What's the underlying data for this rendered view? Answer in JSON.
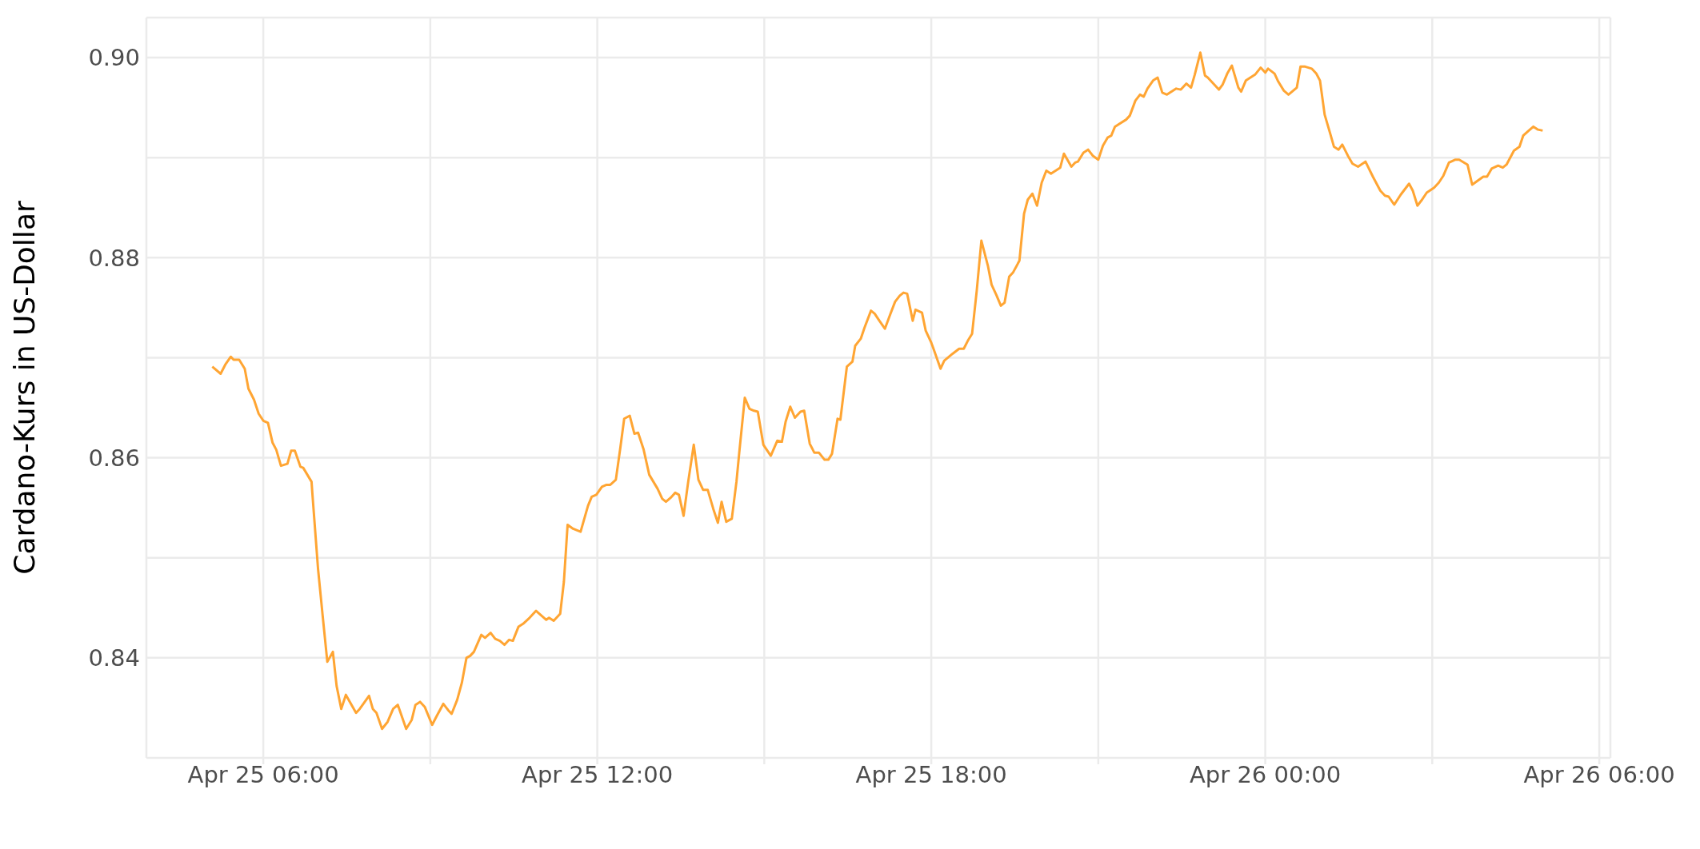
{
  "chart_data": {
    "type": "line",
    "ylabel": "Cardano-Kurs in US-Dollar",
    "xlim": [
      "--04-25T03:54",
      "--04-26T06:12"
    ],
    "xticks": [
      {
        "value": "--04-25T06:00",
        "label": "Apr 25 06:00"
      },
      {
        "value": "--04-25T09:00",
        "label": null
      },
      {
        "value": "--04-25T12:00",
        "label": "Apr 25 12:00"
      },
      {
        "value": "--04-25T15:00",
        "label": null
      },
      {
        "value": "--04-25T18:00",
        "label": "Apr 25 18:00"
      },
      {
        "value": "--04-25T21:00",
        "label": null
      },
      {
        "value": "--04-26T00:00",
        "label": "Apr 26 00:00"
      },
      {
        "value": "--04-26T03:00",
        "label": null
      },
      {
        "value": "--04-26T06:00",
        "label": "Apr 26 06:00"
      }
    ],
    "ylim": [
      0.83,
      0.904
    ],
    "yticks": [
      {
        "value": 0.83,
        "label": null
      },
      0.84,
      {
        "value": 0.85,
        "label": null
      },
      0.86,
      {
        "value": 0.87,
        "label": null
      },
      0.88,
      {
        "value": 0.89,
        "label": null
      },
      {
        "value": 0.9,
        "label": "0.90"
      }
    ],
    "grid": true,
    "legend": false,
    "marker": "none",
    "line_style": "solid",
    "series": [
      {
        "color": "#ffa533",
        "x": [
          "--04-25T05:05",
          "--04-25T05:14",
          "--04-25T05:19",
          "--04-25T05:25",
          "--04-25T05:28",
          "--04-25T05:34",
          "--04-25T05:40",
          "--04-25T05:44",
          "--04-25T05:50",
          "--04-25T05:55",
          "--04-25T06:00",
          "--04-25T06:05",
          "--04-25T06:10",
          "--04-25T06:14",
          "--04-25T06:19",
          "--04-25T06:26",
          "--04-25T06:30",
          "--04-25T06:34",
          "--04-25T06:40",
          "--04-25T06:43",
          "--04-25T06:52",
          "--04-25T06:53",
          "--04-25T06:59",
          "--04-25T07:04",
          "--04-25T07:09",
          "--04-25T07:15",
          "--04-25T07:19",
          "--04-25T07:24",
          "--04-25T07:29",
          "--04-25T07:40",
          "--04-25T07:44",
          "--04-25T07:54",
          "--04-25T07:58",
          "--04-25T08:02",
          "--04-25T08:08",
          "--04-25T08:14",
          "--04-25T08:20",
          "--04-25T08:25",
          "--04-25T08:34",
          "--04-25T08:40",
          "--04-25T08:44",
          "--04-25T08:49",
          "--04-25T08:54",
          "--04-25T09:02",
          "--04-25T09:07",
          "--04-25T09:14",
          "--04-25T09:19",
          "--04-25T09:23",
          "--04-25T09:29",
          "--04-25T09:34",
          "--04-25T09:39",
          "--04-25T09:43",
          "--04-25T09:47",
          "--04-25T09:55",
          "--04-25T09:59",
          "--04-25T10:05",
          "--04-25T10:10",
          "--04-25T10:15",
          "--04-25T10:20",
          "--04-25T10:25",
          "--04-25T10:29",
          "--04-25T10:35",
          "--04-25T10:40",
          "--04-25T10:47",
          "--04-25T10:54",
          "--04-25T11:05",
          "--04-25T11:08",
          "--04-25T11:13",
          "--04-25T11:20",
          "--04-25T11:24",
          "--04-25T11:28",
          "--04-25T11:34",
          "--04-25T11:42",
          "--04-25T11:50",
          "--04-25T11:54",
          "--04-25T11:59",
          "--04-25T12:05",
          "--04-25T12:10",
          "--04-25T12:14",
          "--04-25T12:20",
          "--04-25T12:25",
          "--04-25T12:29",
          "--04-25T12:35",
          "--04-25T12:40",
          "--04-25T12:44",
          "--04-25T12:50",
          "--04-25T12:56",
          "--04-25T13:05",
          "--04-25T13:10",
          "--04-25T13:14",
          "--04-25T13:19",
          "--04-25T13:24",
          "--04-25T13:28",
          "--04-25T13:33",
          "--04-25T13:38",
          "--04-25T13:44",
          "--04-25T13:49",
          "--04-25T13:54",
          "--04-25T13:59",
          "--04-25T14:05",
          "--04-25T14:10",
          "--04-25T14:14",
          "--04-25T14:19",
          "--04-25T14:25",
          "--04-25T14:30",
          "--04-25T14:33",
          "--04-25T14:39",
          "--04-25T14:44",
          "--04-25T14:49",
          "--04-25T14:53",
          "--04-25T14:59",
          "--04-25T15:07",
          "--04-25T15:14",
          "--04-25T15:19",
          "--04-25T15:23",
          "--04-25T15:28",
          "--04-25T15:33",
          "--04-25T15:39",
          "--04-25T15:43",
          "--04-25T15:49",
          "--04-25T15:54",
          "--04-25T15:59",
          "--04-25T16:05",
          "--04-25T16:09",
          "--04-25T16:13",
          "--04-25T16:19",
          "--04-25T16:22",
          "--04-25T16:29",
          "--04-25T16:35",
          "--04-25T16:38",
          "--04-25T16:44",
          "--04-25T16:48",
          "--04-25T16:55",
          "--04-25T16:59",
          "--04-25T17:04",
          "--04-25T17:10",
          "--04-25T17:16",
          "--04-25T17:21",
          "--04-25T17:26",
          "--04-25T17:30",
          "--04-25T17:34",
          "--04-25T17:40",
          "--04-25T17:43",
          "--04-25T17:50",
          "--04-25T17:54",
          "--04-25T18:00",
          "--04-25T18:02",
          "--04-25T18:10",
          "--04-25T18:14",
          "--04-25T18:23",
          "--04-25T18:30",
          "--04-25T18:35",
          "--04-25T18:40",
          "--04-25T18:44",
          "--04-25T18:49",
          "--04-25T18:54",
          "--04-25T19:01",
          "--04-25T19:05",
          "--04-25T19:10",
          "--04-25T19:15",
          "--04-25T19:19",
          "--04-25T19:24",
          "--04-25T19:28",
          "--04-25T19:35",
          "--04-25T19:40",
          "--04-25T19:44",
          "--04-25T19:49",
          "--04-25T19:54",
          "--04-25T19:59",
          "--04-25T20:04",
          "--04-25T20:09",
          "--04-25T20:19",
          "--04-25T20:23",
          "--04-25T20:31",
          "--04-25T20:35",
          "--04-25T20:38",
          "--04-25T20:44",
          "--04-25T20:49",
          "--04-25T20:54",
          "--04-25T21:00",
          "--04-25T21:05",
          "--04-25T21:10",
          "--04-25T21:14",
          "--04-25T21:18",
          "--04-25T21:23",
          "--04-25T21:30",
          "--04-25T21:34",
          "--04-25T21:40",
          "--04-25T21:45",
          "--04-25T21:49",
          "--04-25T21:53",
          "--04-25T21:59",
          "--04-25T22:04",
          "--04-25T22:09",
          "--04-25T22:14",
          "--04-25T22:19",
          "--04-25T22:24",
          "--04-25T22:29",
          "--04-25T22:35",
          "--04-25T22:40",
          "--04-25T22:44",
          "--04-25T22:50",
          "--04-25T22:55",
          "--04-25T22:58",
          "--04-25T23:04",
          "--04-25T23:10",
          "--04-25T23:14",
          "--04-25T23:19",
          "--04-25T23:24",
          "--04-25T23:31",
          "--04-25T23:34",
          "--04-25T23:39",
          "--04-25T23:49",
          "--04-25T23:55",
          "--04-26T00:00",
          "--04-26T00:03",
          "--04-26T00:10",
          "--04-26T00:14",
          "--04-26T00:20",
          "--04-26T00:25",
          "--04-26T00:34",
          "--04-26T00:38",
          "--04-26T00:43",
          "--04-26T00:50",
          "--04-26T00:55",
          "--04-26T00:59",
          "--04-26T01:04",
          "--04-26T01:10",
          "--04-26T01:14",
          "--04-26T01:19",
          "--04-26T01:23",
          "--04-26T01:29",
          "--04-26T01:34",
          "--04-26T01:40",
          "--04-26T01:48",
          "--04-26T01:56",
          "--04-26T02:04",
          "--04-26T02:09",
          "--04-26T02:13",
          "--04-26T02:19",
          "--04-26T02:26",
          "--04-26T02:35",
          "--04-26T02:39",
          "--04-26T02:44",
          "--04-26T02:49",
          "--04-26T02:54",
          "--04-26T03:02",
          "--04-26T03:07",
          "--04-26T03:12",
          "--04-26T03:18",
          "--04-26T03:25",
          "--04-26T03:29",
          "--04-26T03:38",
          "--04-26T03:43",
          "--04-26T03:49",
          "--04-26T03:55",
          "--04-26T03:59",
          "--04-26T04:04",
          "--04-26T04:11",
          "--04-26T04:16",
          "--04-26T04:20",
          "--04-26T04:28",
          "--04-26T04:34",
          "--04-26T04:38",
          "--04-26T04:44",
          "--04-26T04:49",
          "--04-26T04:54",
          "--04-26T04:59"
        ],
        "values": [
          0.8691,
          0.8684,
          0.8693,
          0.8701,
          0.8698,
          0.8698,
          0.8689,
          0.8669,
          0.8658,
          0.8644,
          0.8637,
          0.8635,
          0.8615,
          0.8608,
          0.8592,
          0.8594,
          0.8607,
          0.8607,
          0.8591,
          0.859,
          0.8576,
          0.8563,
          0.8489,
          0.8442,
          0.8396,
          0.8406,
          0.8372,
          0.8349,
          0.8363,
          0.8345,
          0.8349,
          0.8362,
          0.8349,
          0.8345,
          0.8329,
          0.8336,
          0.8349,
          0.8353,
          0.8329,
          0.8338,
          0.8353,
          0.8356,
          0.8351,
          0.8333,
          0.8342,
          0.8354,
          0.8348,
          0.8344,
          0.8358,
          0.8375,
          0.84,
          0.8402,
          0.8406,
          0.8423,
          0.842,
          0.8425,
          0.8419,
          0.8417,
          0.8413,
          0.8418,
          0.8417,
          0.8431,
          0.8434,
          0.844,
          0.8447,
          0.8438,
          0.844,
          0.8437,
          0.8444,
          0.8476,
          0.8533,
          0.8529,
          0.8526,
          0.8552,
          0.8561,
          0.8563,
          0.8571,
          0.8573,
          0.8573,
          0.8578,
          0.8611,
          0.8639,
          0.8642,
          0.8624,
          0.8625,
          0.8608,
          0.8583,
          0.8569,
          0.8559,
          0.8556,
          0.856,
          0.8565,
          0.8563,
          0.8542,
          0.8576,
          0.8613,
          0.8578,
          0.8568,
          0.8568,
          0.8549,
          0.8535,
          0.8556,
          0.8536,
          0.8539,
          0.8576,
          0.8605,
          0.866,
          0.8649,
          0.8647,
          0.8646,
          0.8613,
          0.8602,
          0.8617,
          0.8616,
          0.8636,
          0.8651,
          0.864,
          0.8646,
          0.8647,
          0.8614,
          0.8605,
          0.8605,
          0.8598,
          0.8598,
          0.8604,
          0.8639,
          0.8638,
          0.8691,
          0.8696,
          0.8712,
          0.8719,
          0.873,
          0.8747,
          0.8744,
          0.8737,
          0.8729,
          0.8744,
          0.8756,
          0.8762,
          0.8765,
          0.8764,
          0.8737,
          0.8748,
          0.8745,
          0.8727,
          0.8715,
          0.871,
          0.8689,
          0.8697,
          0.8704,
          0.8709,
          0.8709,
          0.8718,
          0.8724,
          0.8767,
          0.8817,
          0.8792,
          0.8773,
          0.8763,
          0.8752,
          0.8755,
          0.8781,
          0.8785,
          0.8797,
          0.8844,
          0.8858,
          0.8864,
          0.8852,
          0.8875,
          0.8887,
          0.8884,
          0.889,
          0.8904,
          0.8891,
          0.8895,
          0.8896,
          0.8905,
          0.8908,
          0.8902,
          0.8898,
          0.8912,
          0.892,
          0.8922,
          0.8931,
          0.8934,
          0.8938,
          0.8942,
          0.8957,
          0.8963,
          0.8961,
          0.8969,
          0.8977,
          0.898,
          0.8965,
          0.8963,
          0.8966,
          0.8969,
          0.8968,
          0.8974,
          0.897,
          0.8983,
          0.9005,
          0.8982,
          0.898,
          0.8974,
          0.8968,
          0.8973,
          0.8984,
          0.8992,
          0.897,
          0.8966,
          0.8977,
          0.8983,
          0.899,
          0.8985,
          0.8989,
          0.8984,
          0.8976,
          0.8967,
          0.8963,
          0.897,
          0.8991,
          0.8991,
          0.8989,
          0.8984,
          0.8977,
          0.8943,
          0.8924,
          0.8911,
          0.8908,
          0.8913,
          0.8902,
          0.8894,
          0.8891,
          0.8896,
          0.8881,
          0.8867,
          0.8862,
          0.8861,
          0.8853,
          0.8863,
          0.8874,
          0.8867,
          0.8852,
          0.8858,
          0.8865,
          0.887,
          0.8875,
          0.8882,
          0.8895,
          0.8898,
          0.8898,
          0.8893,
          0.8873,
          0.8877,
          0.8881,
          0.8881,
          0.8889,
          0.8892,
          0.889,
          0.8893,
          0.8907,
          0.8911,
          0.8922,
          0.8927,
          0.8931,
          0.8928,
          0.8927
        ]
      }
    ]
  }
}
